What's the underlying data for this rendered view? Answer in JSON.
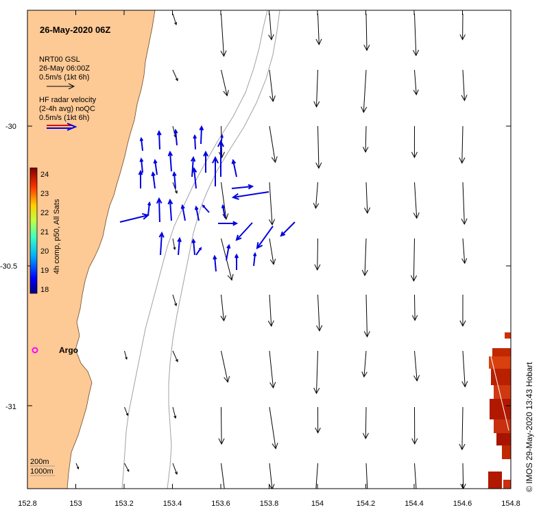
{
  "title": "26-May-2020 06Z",
  "legend": {
    "model_line1": "NRT00 GSL",
    "model_line2": "26-May 06:00Z",
    "model_line3": "0.5m/s (1kt 6h)",
    "radar_line1": "HF radar velocity",
    "radar_line2": "(2-4h avg) noQC",
    "radar_line3": "0.5m/s (1kt 6h)"
  },
  "colorbar": {
    "label": "4h comp, p50, All Sats",
    "ticks": [
      "24",
      "23",
      "22",
      "21",
      "20",
      "19",
      "18"
    ]
  },
  "x_ticks": [
    "152.8",
    "153",
    "153.2",
    "153.4",
    "153.6",
    "153.8",
    "154",
    "154.2",
    "154.4",
    "154.6",
    "154.8"
  ],
  "y_ticks": [
    "-30",
    "-30.5",
    "-31"
  ],
  "argo_label": "Argo",
  "depth_legend": {
    "line1": "200m",
    "line2": "1000m"
  },
  "credit": "© IMOS 29-May-2020 13:43 Hobart",
  "colors": {
    "land": "#fdc995",
    "radar": "#0000e0",
    "model": "#000000",
    "argo": "#ff00ff",
    "contour": "#a0a0a0"
  }
}
